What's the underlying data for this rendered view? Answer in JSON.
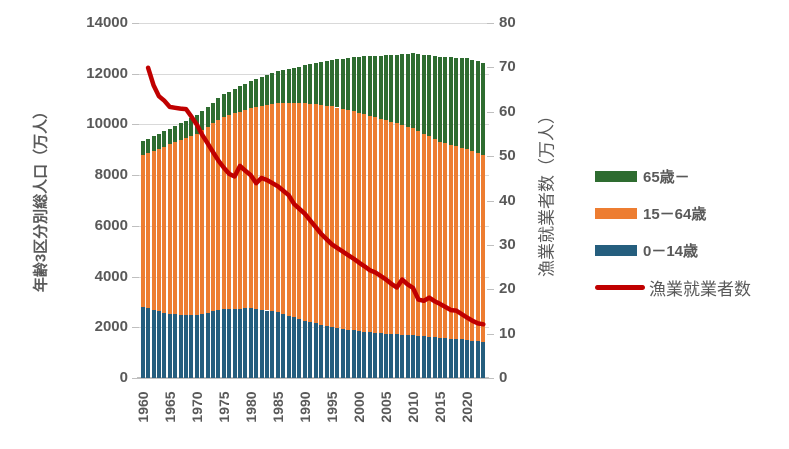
{
  "chart_data": {
    "type": "bar",
    "subtype": "stacked-bar-with-line-combo",
    "title": "",
    "categories": [
      1960,
      1961,
      1962,
      1963,
      1964,
      1965,
      1966,
      1967,
      1968,
      1969,
      1970,
      1971,
      1972,
      1973,
      1974,
      1975,
      1976,
      1977,
      1978,
      1979,
      1980,
      1981,
      1982,
      1983,
      1984,
      1985,
      1986,
      1987,
      1988,
      1989,
      1990,
      1991,
      1992,
      1993,
      1994,
      1995,
      1996,
      1997,
      1998,
      1999,
      2000,
      2001,
      2002,
      2003,
      2004,
      2005,
      2006,
      2007,
      2008,
      2009,
      2010,
      2011,
      2012,
      2013,
      2014,
      2015,
      2016,
      2017,
      2018,
      2019,
      2020,
      2021,
      2022,
      2023
    ],
    "x_tick_labels": [
      "1960",
      "1965",
      "1970",
      "1975",
      "1980",
      "1985",
      "1990",
      "1995",
      "2000",
      "2005",
      "2010",
      "2015",
      "2020"
    ],
    "left_axis": {
      "title": "年齢3区分別総人口（万人）",
      "min": 0,
      "max": 14000,
      "step": 2000,
      "ticks": [
        0,
        2000,
        4000,
        6000,
        8000,
        10000,
        12000,
        14000
      ]
    },
    "right_axis": {
      "title": "漁業就業者数（万人）",
      "min": 0,
      "max": 80,
      "step": 10,
      "ticks": [
        0,
        10,
        20,
        30,
        40,
        50,
        60,
        70,
        80
      ]
    },
    "grid": "horizontal-major",
    "legend_position": "right",
    "series": [
      {
        "name": "0－14歳",
        "type": "bar",
        "stack_order": 1,
        "axis": "left",
        "color": "#255e7e",
        "values": [
          2807,
          2749,
          2691,
          2633,
          2575,
          2517,
          2510,
          2503,
          2496,
          2489,
          2482,
          2530,
          2578,
          2626,
          2674,
          2722,
          2728,
          2734,
          2739,
          2745,
          2751,
          2721,
          2692,
          2662,
          2633,
          2603,
          2532,
          2461,
          2390,
          2320,
          2249,
          2199,
          2150,
          2100,
          2051,
          2001,
          1970,
          1939,
          1909,
          1878,
          1847,
          1828,
          1809,
          1790,
          1771,
          1752,
          1738,
          1723,
          1709,
          1694,
          1680,
          1662,
          1644,
          1625,
          1607,
          1589,
          1572,
          1554,
          1537,
          1520,
          1503,
          1474,
          1446,
          1417
        ]
      },
      {
        "name": "15－64歳",
        "type": "bar",
        "stack_order": 2,
        "axis": "left",
        "color": "#ed7d31",
        "values": [
          6000,
          6139,
          6277,
          6416,
          6554,
          6693,
          6786,
          6879,
          6971,
          7064,
          7157,
          7242,
          7327,
          7411,
          7496,
          7581,
          7642,
          7702,
          7763,
          7823,
          7884,
          7957,
          8031,
          8104,
          8178,
          8251,
          8319,
          8387,
          8454,
          8522,
          8590,
          8615,
          8640,
          8666,
          8691,
          8716,
          8697,
          8678,
          8660,
          8641,
          8622,
          8579,
          8537,
          8494,
          8452,
          8409,
          8362,
          8315,
          8268,
          8221,
          8174,
          8085,
          7996,
          7907,
          7818,
          7729,
          7685,
          7641,
          7597,
          7553,
          7509,
          7471,
          7433,
          7395
        ]
      },
      {
        "name": "65歳－",
        "type": "bar",
        "stack_order": 3,
        "axis": "left",
        "color": "#2e6c30",
        "values": [
          535,
          552,
          568,
          585,
          601,
          618,
          641,
          664,
          687,
          710,
          733,
          764,
          795,
          825,
          856,
          887,
          923,
          958,
          994,
          1029,
          1065,
          1101,
          1138,
          1174,
          1211,
          1247,
          1295,
          1344,
          1392,
          1441,
          1489,
          1556,
          1624,
          1691,
          1759,
          1826,
          1901,
          1976,
          2051,
          2126,
          2201,
          2274,
          2347,
          2421,
          2494,
          2567,
          2643,
          2719,
          2796,
          2872,
          2948,
          3028,
          3108,
          3187,
          3267,
          3347,
          3398,
          3449,
          3501,
          3552,
          3603,
          3610,
          3616,
          3623
        ]
      },
      {
        "name": "漁業就業者数",
        "type": "line",
        "axis": "right",
        "color": "#c00000",
        "values": [
          null,
          69.9,
          66.0,
          63.5,
          62.5,
          61.1,
          60.9,
          60.7,
          60.6,
          58.9,
          57.1,
          54.8,
          52.9,
          50.9,
          49.0,
          47.4,
          46.0,
          45.4,
          47.8,
          46.7,
          45.7,
          43.9,
          45.1,
          44.6,
          43.9,
          43.2,
          42.2,
          41.2,
          39.2,
          38.1,
          37.0,
          35.5,
          34.0,
          32.5,
          31.3,
          30.1,
          29.3,
          28.5,
          27.7,
          26.9,
          26.0,
          25.2,
          24.3,
          23.8,
          23.0,
          22.2,
          21.2,
          20.4,
          22.2,
          21.1,
          20.3,
          17.7,
          17.4,
          18.1,
          17.3,
          16.7,
          16.0,
          15.3,
          15.2,
          14.4,
          13.6,
          12.9,
          12.3,
          12.1
        ]
      }
    ]
  },
  "legend": {
    "items": [
      {
        "label": "65歳－",
        "color": "#2e6c30",
        "shape": "square"
      },
      {
        "label": "15－64歳",
        "color": "#ed7d31",
        "shape": "square"
      },
      {
        "label": "0－14歳",
        "color": "#255e7e",
        "shape": "square"
      },
      {
        "label": "漁業就業者数",
        "color": "#c00000",
        "shape": "line"
      }
    ]
  },
  "colors": {
    "bar_young": "#255e7e",
    "bar_working": "#ed7d31",
    "bar_elderly": "#2e6c30",
    "line_fishery": "#c00000",
    "text": "#595959",
    "gridline": "#d9d9d9"
  }
}
